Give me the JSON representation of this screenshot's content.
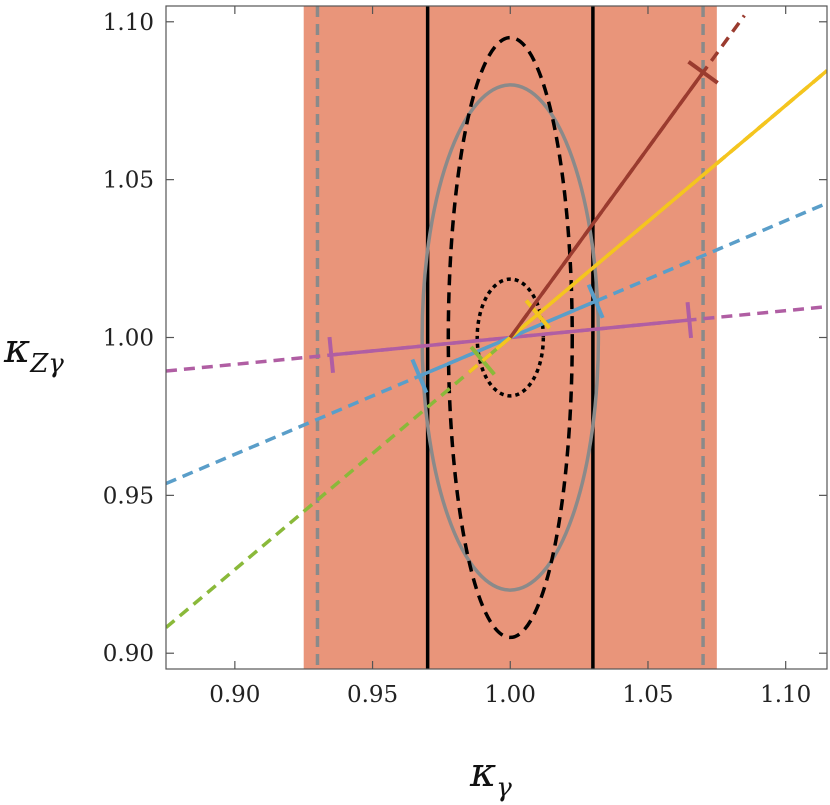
{
  "chart_data": {
    "type": "line",
    "title": "",
    "xlabel": "κ",
    "xlabel_sub": "γ",
    "ylabel": "κ",
    "ylabel_sub": "Zγ",
    "xlim": [
      0.875,
      1.115
    ],
    "ylim": [
      0.895,
      1.105
    ],
    "xticks": [
      0.9,
      0.95,
      1.0,
      1.05,
      1.1
    ],
    "xtick_labels": [
      "0.90",
      "0.95",
      "1.00",
      "1.05",
      "1.10"
    ],
    "yticks": [
      0.9,
      0.95,
      1.0,
      1.05,
      1.1
    ],
    "ytick_labels": [
      "0.90",
      "0.95",
      "1.00",
      "1.05",
      "1.10"
    ],
    "grid": false,
    "legend": "none",
    "bands": [
      {
        "x": [
          0.925,
          1.075
        ],
        "color": "#e9957a"
      }
    ],
    "vertical_lines": [
      {
        "x": 0.93,
        "style": "dashed",
        "color": "#8a8a8a"
      },
      {
        "x": 1.07,
        "style": "dashed",
        "color": "#8a8a8a"
      },
      {
        "x": 0.97,
        "style": "solid",
        "color": "#000000"
      },
      {
        "x": 1.03,
        "style": "solid",
        "color": "#000000"
      }
    ],
    "ellipses": [
      {
        "center": [
          1.0,
          1.0
        ],
        "rx": 0.032,
        "ry": 0.08,
        "style": "solid",
        "color": "#8a8a8a"
      },
      {
        "center": [
          1.0,
          1.0
        ],
        "rx": 0.0225,
        "ry": 0.095,
        "style": "dashed",
        "color": "#000000"
      },
      {
        "center": [
          1.0,
          1.0
        ],
        "rx": 0.012,
        "ry": 0.0185,
        "style": "dotted",
        "color": "#000000"
      }
    ],
    "series": [
      {
        "color": "#b05ea3",
        "slope": 0.085,
        "x_range": [
          0.875,
          1.115
        ],
        "solid_range": [
          0.935,
          1.065
        ],
        "markers": [
          0.935,
          1.065
        ]
      },
      {
        "color": "#5a9ec9",
        "slope": 0.37,
        "x_range": [
          0.875,
          1.115
        ],
        "solid_range": [
          0.967,
          1.031
        ],
        "markers": [
          0.967,
          1.031
        ]
      },
      {
        "color": "#8ab93a",
        "slope": 0.735,
        "x_range": [
          0.875,
          1.115
        ],
        "solid_range": [
          0.99,
          1.01
        ],
        "markers": [
          0.99,
          1.01
        ]
      },
      {
        "color": "#f5c51e",
        "slope": 0.735,
        "x_range": [
          0.985,
          1.115
        ],
        "solid_range": [
          0.997,
          1.115
        ],
        "markers": [
          1.01
        ]
      },
      {
        "color": "#9a3b2f",
        "slope": 1.2,
        "x_range": [
          1.0,
          1.085
        ],
        "solid_range": [
          1.0,
          1.07
        ],
        "markers": [
          1.07
        ]
      }
    ]
  }
}
